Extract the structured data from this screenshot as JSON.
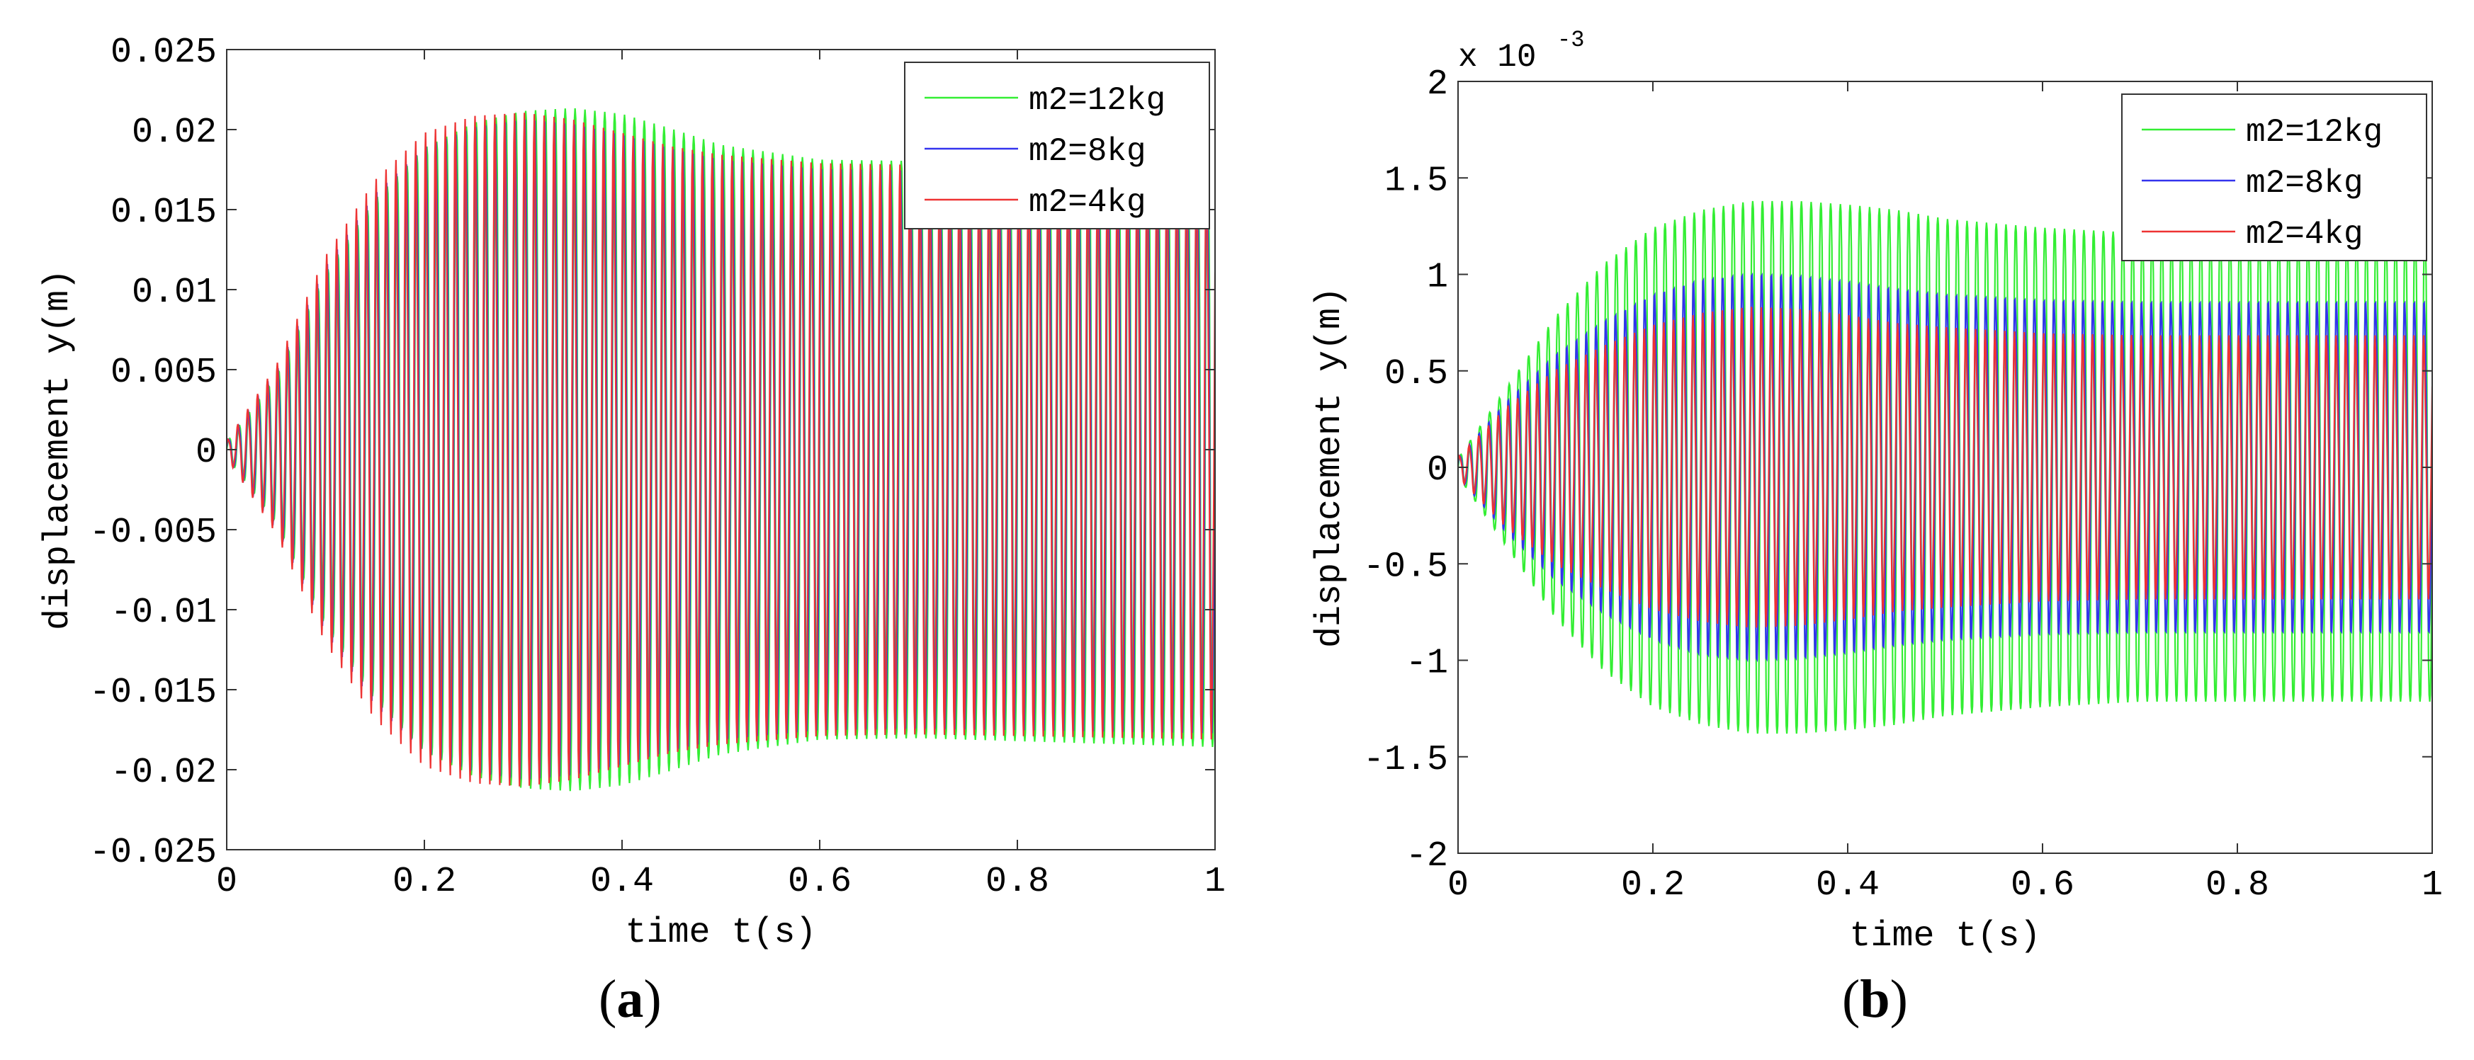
{
  "panel_labels": {
    "a": {
      "open": "(",
      "letter": "a",
      "close": ")"
    },
    "b": {
      "open": "(",
      "letter": "b",
      "close": ")"
    }
  },
  "chart_data": [
    {
      "type": "line",
      "panel": "a",
      "xlabel": "time t(s)",
      "ylabel": "displacement y(m)",
      "xlim": [
        0,
        1
      ],
      "ylim": [
        -0.025,
        0.025
      ],
      "exponent_label": "",
      "x_ticks": [
        0,
        0.2,
        0.4,
        0.6,
        0.8,
        1
      ],
      "x_tick_labels": [
        "0",
        "0.2",
        "0.4",
        "0.6",
        "0.8",
        "1"
      ],
      "y_ticks": [
        0.025,
        0.02,
        0.015,
        0.01,
        0.005,
        0,
        -0.005,
        -0.01,
        -0.015,
        -0.02,
        -0.025
      ],
      "y_tick_labels": [
        "0.025",
        "0.02",
        "0.015",
        "0.01",
        "0.005",
        "0",
        "-0.005",
        "-0.01",
        "-0.015",
        "-0.02",
        "-0.025"
      ],
      "grid": false,
      "legend_position": "top-right",
      "frequency_hz": 100,
      "series": [
        {
          "name": "m2=12kg",
          "color": "#33ee33",
          "envelope": {
            "t": [
              0,
              0.05,
              0.1,
              0.15,
              0.2,
              0.25,
              0.3,
              0.35,
              0.4,
              0.45,
              0.5,
              0.6,
              0.7,
              0.8,
              0.9,
              1.0
            ],
            "amp": [
              0.0005,
              0.005,
              0.012,
              0.017,
              0.0205,
              0.0222,
              0.023,
              0.0232,
              0.0228,
              0.0218,
              0.0207,
              0.0197,
              0.0196,
              0.0198,
              0.02,
              0.0202
            ]
          }
        },
        {
          "name": "m2=8kg",
          "color": "#3333ee",
          "envelope": {
            "t": [
              0,
              0.05,
              0.1,
              0.15,
              0.2,
              0.25,
              0.3,
              0.35,
              0.4,
              0.45,
              0.5,
              0.6,
              0.7,
              0.8,
              0.9,
              1.0
            ],
            "amp": [
              0.0005,
              0.005,
              0.0118,
              0.0165,
              0.0195,
              0.0208,
              0.0213,
              0.021,
              0.0203,
              0.0194,
              0.0187,
              0.0181,
              0.018,
              0.0181,
              0.0182,
              0.0183
            ]
          }
        },
        {
          "name": "m2=4kg",
          "color": "#ee3333",
          "envelope": {
            "t": [
              0,
              0.05,
              0.1,
              0.15,
              0.2,
              0.25,
              0.3,
              0.35,
              0.4,
              0.45,
              0.5,
              0.6,
              0.7,
              0.8,
              0.9,
              1.0
            ],
            "amp": [
              0.0005,
              0.005,
              0.0115,
              0.016,
              0.0188,
              0.0198,
              0.02,
              0.0196,
              0.0188,
              0.018,
              0.0175,
              0.017,
              0.0169,
              0.017,
              0.0171,
              0.0172
            ]
          }
        }
      ]
    },
    {
      "type": "line",
      "panel": "b",
      "xlabel": "time t(s)",
      "ylabel": "displacement y(m)",
      "xlim": [
        0,
        1
      ],
      "ylim": [
        -2,
        2
      ],
      "exponent_label": "x 10",
      "exponent_power": "-3",
      "x_ticks": [
        0,
        0.2,
        0.4,
        0.6,
        0.8,
        1
      ],
      "x_tick_labels": [
        "0",
        "0.2",
        "0.4",
        "0.6",
        "0.8",
        "1"
      ],
      "y_ticks": [
        2,
        1.5,
        1,
        0.5,
        0,
        -0.5,
        -1,
        -1.5,
        -2
      ],
      "y_tick_labels": [
        "2",
        "1.5",
        "1",
        "0.5",
        "0",
        "-0.5",
        "-1",
        "-1.5",
        "-2"
      ],
      "grid": false,
      "legend_position": "top-right",
      "frequency_hz": 100,
      "series": [
        {
          "name": "m2=12kg",
          "color": "#33ee33",
          "envelope": {
            "t": [
              0,
              0.05,
              0.1,
              0.15,
              0.2,
              0.25,
              0.3,
              0.35,
              0.4,
              0.45,
              0.5,
              0.6,
              0.7,
              0.8,
              0.9,
              1.0
            ],
            "amp": [
              0.05,
              0.45,
              0.85,
              1.15,
              1.35,
              1.45,
              1.5,
              1.5,
              1.48,
              1.45,
              1.4,
              1.35,
              1.32,
              1.32,
              1.32,
              1.32
            ]
          }
        },
        {
          "name": "m2=8kg",
          "color": "#3333ee",
          "envelope": {
            "t": [
              0,
              0.05,
              0.1,
              0.15,
              0.2,
              0.25,
              0.3,
              0.35,
              0.4,
              0.45,
              0.5,
              0.6,
              0.7,
              0.8,
              0.9,
              1.0
            ],
            "amp": [
              0.05,
              0.35,
              0.6,
              0.78,
              0.92,
              1.0,
              1.03,
              1.02,
              0.99,
              0.95,
              0.92,
              0.89,
              0.88,
              0.88,
              0.88,
              0.88
            ]
          }
        },
        {
          "name": "m2=4kg",
          "color": "#ee3333",
          "envelope": {
            "t": [
              0,
              0.05,
              0.1,
              0.15,
              0.2,
              0.25,
              0.3,
              0.35,
              0.4,
              0.45,
              0.5,
              0.6,
              0.7,
              0.8,
              0.9,
              1.0
            ],
            "amp": [
              0.05,
              0.3,
              0.48,
              0.6,
              0.7,
              0.76,
              0.79,
              0.78,
              0.75,
              0.71,
              0.69,
              0.66,
              0.65,
              0.65,
              0.65,
              0.65
            ]
          }
        }
      ]
    }
  ]
}
